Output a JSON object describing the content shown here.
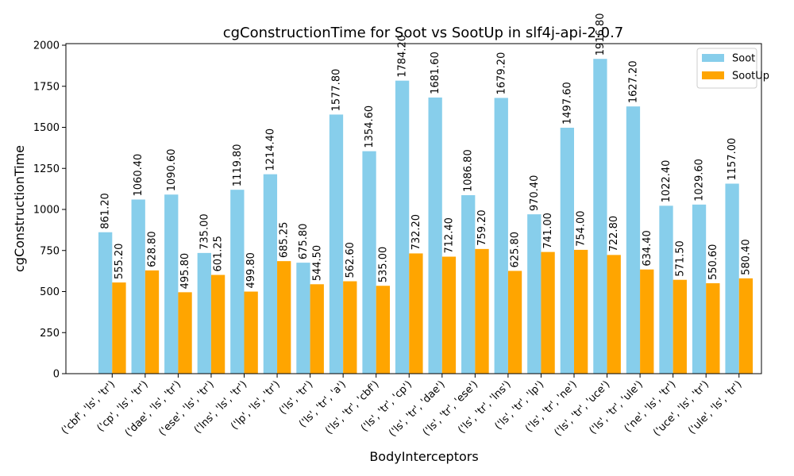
{
  "chart_data": {
    "type": "bar",
    "title": "cgConstructionTime for Soot vs SootUp in slf4j-api-2.0.7",
    "xlabel": "BodyInterceptors",
    "ylabel": "cgConstructionTime",
    "ylim": [
      0,
      2000
    ],
    "yticks": [
      0,
      250,
      500,
      750,
      1000,
      1250,
      1500,
      1750,
      2000
    ],
    "grid": false,
    "legend_position": "top-right",
    "categories": [
      "('cbf', 'ls', 'tr')",
      "('cp', 'ls', 'tr')",
      "('dae', 'ls', 'tr')",
      "('ese', 'ls', 'tr')",
      "('lns', 'ls', 'tr')",
      "('lp', 'ls', 'tr')",
      "('ls', 'tr')",
      "('ls', 'tr', 'a')",
      "('ls', 'tr', 'cbf')",
      "('ls', 'tr', 'cp')",
      "('ls', 'tr', 'dae')",
      "('ls', 'tr', 'ese')",
      "('ls', 'tr', 'lns')",
      "('ls', 'tr', 'lp')",
      "('ls', 'tr', 'ne')",
      "('ls', 'tr', 'uce')",
      "('ls', 'tr', 'ule')",
      "('ne', 'ls', 'tr')",
      "('uce', 'ls', 'tr')",
      "('ule', 'ls', 'tr')"
    ],
    "series": [
      {
        "name": "Soot",
        "color": "#87ceeb",
        "values": [
          861.2,
          1060.4,
          1090.6,
          735.0,
          1119.8,
          1214.4,
          675.8,
          1577.8,
          1354.6,
          1784.2,
          1681.6,
          1086.8,
          1679.2,
          970.4,
          1497.6,
          1916.8,
          1627.2,
          1022.4,
          1029.6,
          1157.0
        ],
        "labels": [
          "861.20",
          "1060.40",
          "1090.60",
          "735.00",
          "1119.80",
          "1214.40",
          "675.80",
          "1577.80",
          "1354.60",
          "1784.20",
          "1681.60",
          "1086.80",
          "1679.20",
          "970.40",
          "1497.60",
          "1916.80",
          "1627.20",
          "1022.40",
          "1029.60",
          "1157.00"
        ]
      },
      {
        "name": "SootUp",
        "color": "#ffa500",
        "values": [
          555.2,
          628.8,
          495.8,
          601.25,
          499.8,
          685.25,
          544.5,
          562.6,
          535.0,
          732.2,
          712.4,
          759.2,
          625.8,
          741.0,
          754.0,
          722.8,
          634.4,
          571.5,
          550.6,
          580.4
        ],
        "labels": [
          "555.20",
          "628.80",
          "495.80",
          "601.25",
          "499.80",
          "685.25",
          "544.50",
          "562.60",
          "535.00",
          "732.20",
          "712.40",
          "759.20",
          "625.80",
          "741.00",
          "754.00",
          "722.80",
          "634.40",
          "571.50",
          "550.60",
          "580.40"
        ]
      }
    ]
  }
}
